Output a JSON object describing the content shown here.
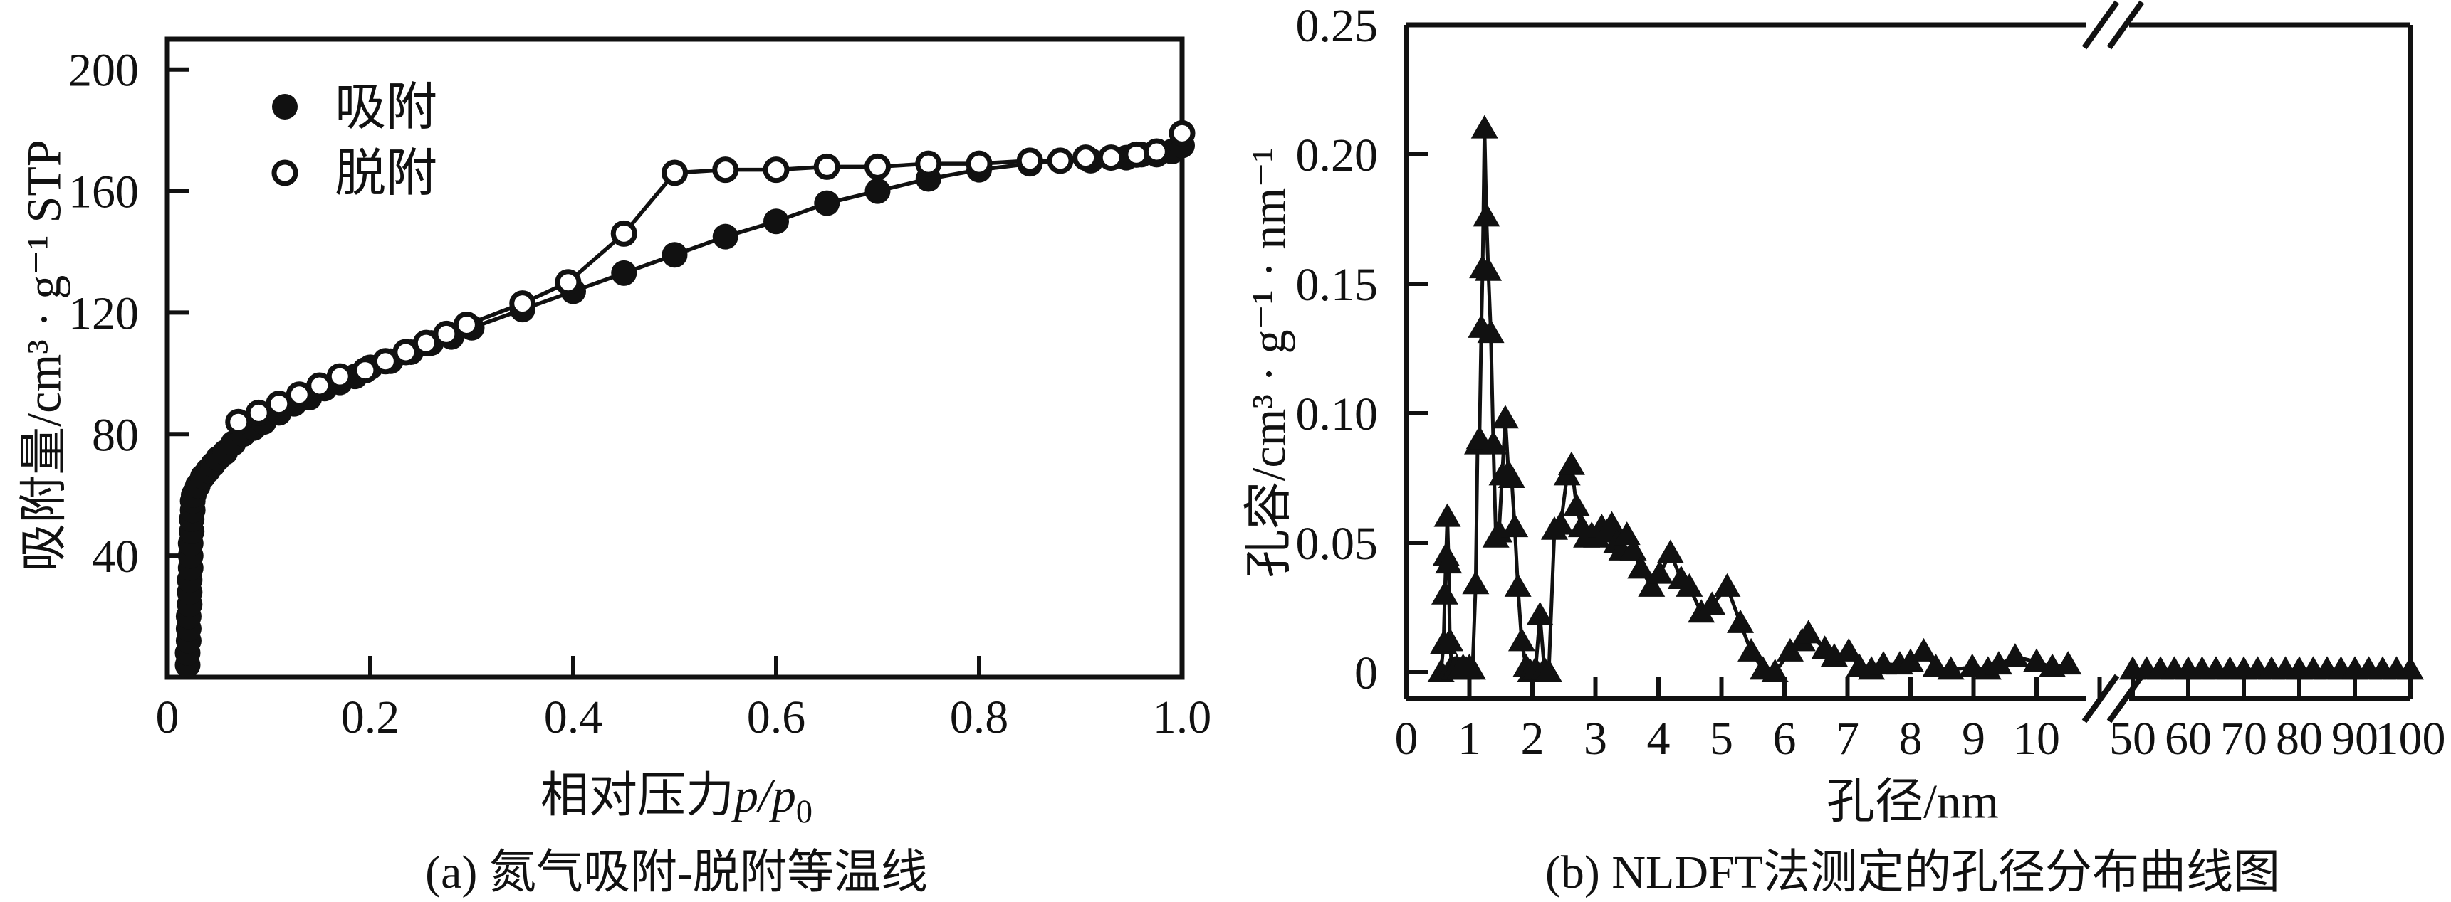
{
  "figure": {
    "background": "#ffffff",
    "ink": "#111111"
  },
  "chart_data": [
    {
      "panel": "a",
      "type": "line",
      "caption": "(a) 氮气吸附-脱附等温线",
      "xlabel": {
        "prefix": "相对压力",
        "italic": "p/p",
        "sub": "0"
      },
      "ylabel": "吸附量/cm³ · g⁻¹ STP",
      "xlim": [
        0,
        1.0
      ],
      "ylim": [
        0,
        210
      ],
      "xticks": [
        0,
        0.2,
        0.4,
        0.6,
        0.8,
        1.0
      ],
      "yticks": [
        40,
        80,
        120,
        160,
        200
      ],
      "grid": false,
      "legend_position": "top-left-inside",
      "legend": [
        {
          "label": "吸附",
          "marker": "filled-circle"
        },
        {
          "label": "脱附",
          "marker": "open-circle"
        }
      ],
      "series": [
        {
          "name": "吸附",
          "marker": "filled-circle",
          "points": [
            [
              0.02,
              4
            ],
            [
              0.02,
              8
            ],
            [
              0.021,
              12
            ],
            [
              0.021,
              16
            ],
            [
              0.021,
              20
            ],
            [
              0.022,
              24
            ],
            [
              0.022,
              28
            ],
            [
              0.022,
              32
            ],
            [
              0.023,
              36
            ],
            [
              0.023,
              40
            ],
            [
              0.023,
              44
            ],
            [
              0.024,
              48
            ],
            [
              0.024,
              52
            ],
            [
              0.025,
              55
            ],
            [
              0.025,
              58
            ],
            [
              0.026,
              60
            ],
            [
              0.03,
              63
            ],
            [
              0.035,
              66
            ],
            [
              0.04,
              68
            ],
            [
              0.045,
              70
            ],
            [
              0.05,
              72
            ],
            [
              0.057,
              74
            ],
            [
              0.065,
              77
            ],
            [
              0.075,
              80
            ],
            [
              0.085,
              82
            ],
            [
              0.095,
              84
            ],
            [
              0.11,
              87
            ],
            [
              0.125,
              90
            ],
            [
              0.14,
              92
            ],
            [
              0.155,
              95
            ],
            [
              0.17,
              97
            ],
            [
              0.185,
              99
            ],
            [
              0.2,
              102
            ],
            [
              0.22,
              104
            ],
            [
              0.24,
              107
            ],
            [
              0.26,
              110
            ],
            [
              0.28,
              112
            ],
            [
              0.3,
              115
            ],
            [
              0.35,
              121
            ],
            [
              0.4,
              127
            ],
            [
              0.45,
              133
            ],
            [
              0.5,
              139
            ],
            [
              0.55,
              145
            ],
            [
              0.6,
              150
            ],
            [
              0.65,
              156
            ],
            [
              0.7,
              160
            ],
            [
              0.75,
              164
            ],
            [
              0.8,
              167
            ],
            [
              0.85,
              169
            ],
            [
              0.88,
              170
            ],
            [
              0.91,
              170
            ],
            [
              0.93,
              171
            ],
            [
              0.945,
              171
            ],
            [
              0.96,
              172
            ],
            [
              0.975,
              172
            ],
            [
              0.99,
              173
            ],
            [
              1.0,
              175
            ]
          ]
        },
        {
          "name": "脱附",
          "marker": "open-circle",
          "points": [
            [
              0.07,
              84
            ],
            [
              0.09,
              87
            ],
            [
              0.11,
              90
            ],
            [
              0.13,
              93
            ],
            [
              0.15,
              96
            ],
            [
              0.17,
              99
            ],
            [
              0.195,
              101
            ],
            [
              0.215,
              104
            ],
            [
              0.235,
              107
            ],
            [
              0.255,
              110
            ],
            [
              0.275,
              113
            ],
            [
              0.295,
              116
            ],
            [
              0.35,
              123
            ],
            [
              0.395,
              130
            ],
            [
              0.45,
              146
            ],
            [
              0.5,
              166
            ],
            [
              0.55,
              167
            ],
            [
              0.6,
              167
            ],
            [
              0.65,
              168
            ],
            [
              0.7,
              168
            ],
            [
              0.75,
              169
            ],
            [
              0.8,
              169
            ],
            [
              0.85,
              170
            ],
            [
              0.88,
              170
            ],
            [
              0.905,
              171
            ],
            [
              0.93,
              171
            ],
            [
              0.955,
              172
            ],
            [
              0.975,
              173
            ],
            [
              1.0,
              179
            ]
          ]
        }
      ]
    },
    {
      "panel": "b",
      "type": "line",
      "caption": "(b) NLDFT法测定的孔径分布曲线图",
      "xlabel": {
        "prefix": "孔径/nm"
      },
      "ylabel": "孔容/cm³ · g⁻¹ · nm⁻¹",
      "ylim": [
        0,
        0.25
      ],
      "yticks": [
        0,
        0.05,
        0.1,
        0.15,
        0.2,
        0.25
      ],
      "grid": false,
      "x_axis_break": {
        "linear_ticks": [
          0,
          1,
          2,
          3,
          4,
          5,
          6,
          7,
          8,
          9,
          10
        ],
        "after_break_ticks": [
          50,
          60,
          70,
          80,
          90,
          100
        ]
      },
      "series": [
        {
          "name": "孔径分布",
          "marker": "filled-triangle",
          "points": [
            [
              0.55,
              0
            ],
            [
              0.59,
              0.011
            ],
            [
              0.61,
              0.03
            ],
            [
              0.63,
              0.045
            ],
            [
              0.65,
              0.06
            ],
            [
              0.67,
              0.042
            ],
            [
              0.69,
              0.012
            ],
            [
              0.72,
              0.002
            ],
            [
              0.76,
              0.001
            ],
            [
              0.8,
              0.002
            ],
            [
              0.85,
              0.001
            ],
            [
              0.9,
              0.002
            ],
            [
              0.95,
              0.001
            ],
            [
              1.0,
              0.002
            ],
            [
              1.05,
              0.001
            ],
            [
              1.1,
              0.034
            ],
            [
              1.13,
              0.088
            ],
            [
              1.16,
              0.09
            ],
            [
              1.19,
              0.133
            ],
            [
              1.21,
              0.156
            ],
            [
              1.24,
              0.21
            ],
            [
              1.27,
              0.176
            ],
            [
              1.3,
              0.155
            ],
            [
              1.34,
              0.131
            ],
            [
              1.38,
              0.088
            ],
            [
              1.42,
              0.052
            ],
            [
              1.47,
              0.054
            ],
            [
              1.52,
              0.076
            ],
            [
              1.57,
              0.098
            ],
            [
              1.62,
              0.077
            ],
            [
              1.67,
              0.075
            ],
            [
              1.72,
              0.056
            ],
            [
              1.77,
              0.033
            ],
            [
              1.83,
              0.012
            ],
            [
              1.9,
              0.002
            ],
            [
              1.97,
              0
            ],
            [
              2.05,
              0.001
            ],
            [
              2.12,
              0.022
            ],
            [
              2.19,
              0.001
            ],
            [
              2.26,
              0
            ],
            [
              2.35,
              0.055
            ],
            [
              2.45,
              0.057
            ],
            [
              2.55,
              0.076
            ],
            [
              2.62,
              0.08
            ],
            [
              2.7,
              0.064
            ],
            [
              2.78,
              0.056
            ],
            [
              2.86,
              0.052
            ],
            [
              2.94,
              0.053
            ],
            [
              3.02,
              0.052
            ],
            [
              3.1,
              0.056
            ],
            [
              3.18,
              0.054
            ],
            [
              3.26,
              0.057
            ],
            [
              3.34,
              0.05
            ],
            [
              3.42,
              0.047
            ],
            [
              3.5,
              0.053
            ],
            [
              3.6,
              0.047
            ],
            [
              3.72,
              0.04
            ],
            [
              3.89,
              0.033
            ],
            [
              4.02,
              0.038
            ],
            [
              4.19,
              0.046
            ],
            [
              4.36,
              0.036
            ],
            [
              4.49,
              0.033
            ],
            [
              4.68,
              0.023
            ],
            [
              4.85,
              0.026
            ],
            [
              5.09,
              0.033
            ],
            [
              5.3,
              0.019
            ],
            [
              5.47,
              0.008
            ],
            [
              5.66,
              0.001
            ],
            [
              5.85,
              0
            ],
            [
              6.09,
              0.008
            ],
            [
              6.28,
              0.012
            ],
            [
              6.38,
              0.015
            ],
            [
              6.64,
              0.009
            ],
            [
              6.79,
              0.006
            ],
            [
              7.02,
              0.008
            ],
            [
              7.19,
              0.002
            ],
            [
              7.38,
              0.001
            ],
            [
              7.57,
              0.003
            ],
            [
              7.83,
              0.003
            ],
            [
              8.0,
              0.004
            ],
            [
              8.21,
              0.008
            ],
            [
              8.4,
              0.002
            ],
            [
              8.64,
              0.001
            ],
            [
              8.98,
              0.002
            ],
            [
              9.23,
              0.001
            ],
            [
              9.4,
              0.003
            ],
            [
              9.66,
              0.006
            ],
            [
              10.0,
              0.004
            ],
            [
              10.25,
              0.002
            ],
            [
              10.5,
              0.003
            ],
            [
              50,
              0.001
            ],
            [
              52.5,
              0.001
            ],
            [
              55,
              0.001
            ],
            [
              57.5,
              0.001
            ],
            [
              60,
              0.001
            ],
            [
              62.5,
              0.001
            ],
            [
              65,
              0.001
            ],
            [
              67.5,
              0.001
            ],
            [
              70,
              0.001
            ],
            [
              72.5,
              0.001
            ],
            [
              75,
              0.001
            ],
            [
              77.5,
              0.001
            ],
            [
              80,
              0.001
            ],
            [
              82.5,
              0.001
            ],
            [
              85,
              0.001
            ],
            [
              87.5,
              0.001
            ],
            [
              90,
              0.001
            ],
            [
              92.5,
              0.001
            ],
            [
              95,
              0.001
            ],
            [
              97.5,
              0.001
            ],
            [
              100,
              0.001
            ]
          ]
        }
      ]
    }
  ]
}
